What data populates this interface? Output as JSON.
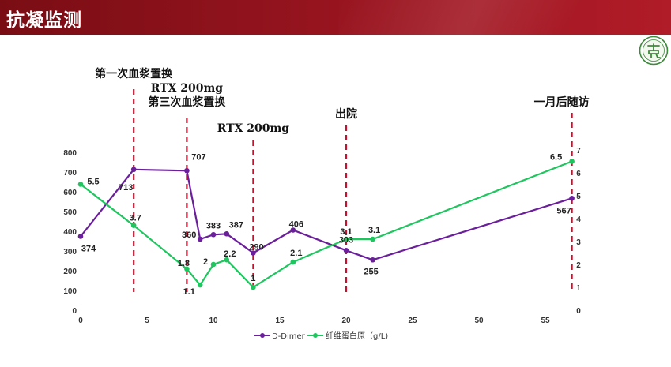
{
  "header": {
    "title": "抗凝监测"
  },
  "colors": {
    "header": "#8e1119",
    "ddimer": "#6b1f9b",
    "fib": "#1fc55e",
    "marker": "#c8102e"
  },
  "chart_data": {
    "type": "line",
    "x_ticks": [
      "0",
      "5",
      "10",
      "15",
      "20",
      "25",
      "50",
      "55"
    ],
    "y_left_ticks": [
      "0",
      "100",
      "200",
      "300",
      "400",
      "500",
      "600",
      "700",
      "800"
    ],
    "y_right_ticks": [
      "0",
      "1",
      "2",
      "3",
      "4",
      "5",
      "6",
      "7"
    ],
    "ylim_left": [
      0,
      800
    ],
    "ylim_right": [
      0,
      7
    ],
    "series": [
      {
        "name": "D-Dimer",
        "axis": "left",
        "color": "#6b1f9b",
        "x": [
          0,
          4,
          8,
          9,
          10,
          11,
          13,
          16,
          20,
          22,
          57
        ],
        "values": [
          374,
          713,
          707,
          360,
          383,
          387,
          290,
          406,
          303,
          255,
          567
        ],
        "labels": [
          "374",
          "713",
          "707",
          "360",
          "383",
          "387",
          "290",
          "406",
          "303",
          "255",
          "567"
        ]
      },
      {
        "name": "纤维蛋白原（g/L)",
        "axis": "right",
        "color": "#1fc55e",
        "x": [
          0,
          4,
          8,
          9,
          10,
          11,
          13,
          16,
          20,
          22,
          57
        ],
        "values": [
          5.5,
          3.7,
          1.8,
          1.1,
          2,
          2.2,
          1,
          2.1,
          3.1,
          3.1,
          6.5
        ],
        "labels": [
          "5.5",
          "3.7",
          "1.8",
          "1.1",
          "2",
          "2.2",
          "1",
          "2.1",
          "3.1",
          "3.1",
          "6.5"
        ]
      }
    ],
    "events": [
      {
        "x": 4,
        "lines": [
          "第一次血浆置换"
        ]
      },
      {
        "x": 8,
        "lines": [
          "RTX 200mg",
          "第三次血浆置换"
        ]
      },
      {
        "x": 13,
        "lines": [
          "RTX 200mg"
        ]
      },
      {
        "x": 20,
        "lines": [
          "出院"
        ]
      },
      {
        "x": 57,
        "lines": [
          "一月后随访"
        ]
      }
    ]
  }
}
